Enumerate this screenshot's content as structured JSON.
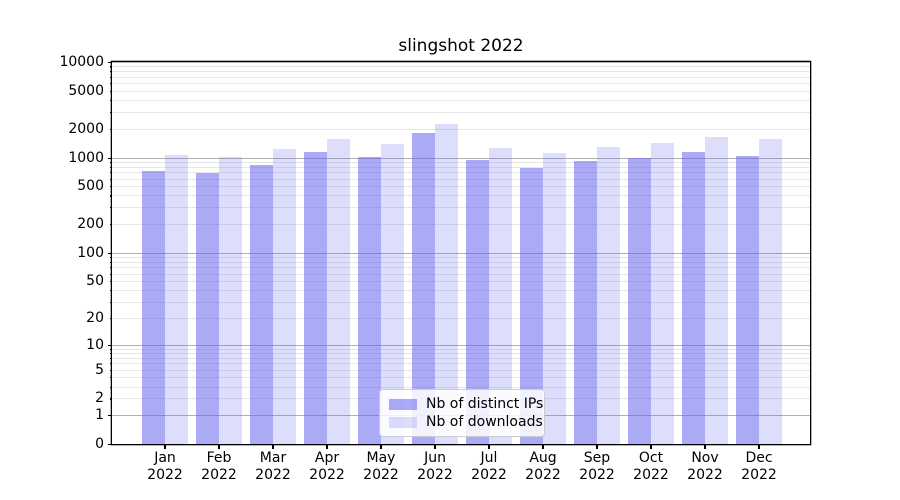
{
  "figure": {
    "background": "#ffffff",
    "axis_color": "#000000"
  },
  "chart_data": {
    "type": "bar",
    "title": "slingshot 2022",
    "xlabel": "",
    "ylabel": "",
    "scale": "log10(y+1)",
    "ylim": [
      0,
      10000
    ],
    "yticks": [
      0,
      1,
      2,
      5,
      10,
      20,
      50,
      100,
      200,
      500,
      1000,
      2000,
      5000,
      10000
    ],
    "grid": {
      "on": true,
      "major_color": "#b0b0b0",
      "minor_color": "#e6e6e6"
    },
    "legend_position": "lower center",
    "x_labels": [
      {
        "month": "Jan",
        "year": "2022"
      },
      {
        "month": "Feb",
        "year": "2022"
      },
      {
        "month": "Mar",
        "year": "2022"
      },
      {
        "month": "Apr",
        "year": "2022"
      },
      {
        "month": "May",
        "year": "2022"
      },
      {
        "month": "Jun",
        "year": "2022"
      },
      {
        "month": "Jul",
        "year": "2022"
      },
      {
        "month": "Aug",
        "year": "2022"
      },
      {
        "month": "Sep",
        "year": "2022"
      },
      {
        "month": "Oct",
        "year": "2022"
      },
      {
        "month": "Nov",
        "year": "2022"
      },
      {
        "month": "Dec",
        "year": "2022"
      }
    ],
    "series": [
      {
        "name": "Nb of distinct IPs",
        "color": "rgba(100,100,240,0.55)",
        "values": [
          720,
          680,
          840,
          1130,
          1010,
          1790,
          940,
          780,
          920,
          980,
          1150,
          1040
        ]
      },
      {
        "name": "Nb of downloads",
        "color": "rgba(100,100,240,0.22)",
        "values": [
          1050,
          1010,
          1230,
          1560,
          1370,
          2230,
          1270,
          1110,
          1290,
          1420,
          1640,
          1550
        ]
      }
    ]
  }
}
